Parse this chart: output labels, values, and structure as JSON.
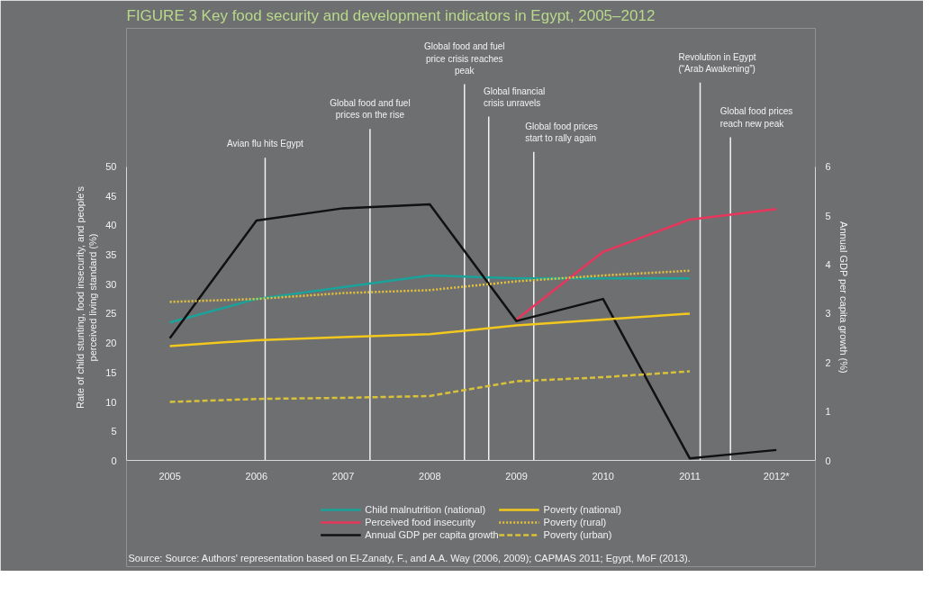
{
  "chart_data": {
    "type": "line",
    "title": "FIGURE 3   Key food security and development indicators in Egypt, 2005–2012",
    "ylabel": "Rate of child stunting, food insecurity, and people's perceived living standard (%)",
    "y2label": "Annual GDP per capita growth (%)",
    "xlim": [
      2004.5,
      2012.45
    ],
    "xticks": [
      2005,
      2006,
      2007,
      2008,
      2009,
      2010,
      2011,
      {
        "value": 2012,
        "label": "2012*"
      }
    ],
    "ylim": [
      0,
      50
    ],
    "yticks": [
      0,
      5,
      10,
      15,
      20,
      25,
      30,
      35,
      40,
      45,
      50
    ],
    "y2lim": [
      0,
      6
    ],
    "y2ticks": [
      0,
      1,
      2,
      3,
      4,
      5,
      6
    ],
    "grid": false,
    "legend": "bottom",
    "marker": "none",
    "series": [
      {
        "name": "Child malnutrition (national)",
        "color": "#1aa39a",
        "line_style": "solid",
        "x": [
          2005,
          2006,
          2007,
          2008,
          2009,
          2010,
          2011
        ],
        "values": [
          23.5,
          27.5,
          29.5,
          31.5,
          31,
          31,
          31
        ]
      },
      {
        "name": "Perceived food insecurity",
        "color": "#e8365d",
        "line_style": "solid",
        "x": [
          2009,
          2010,
          2011,
          2012
        ],
        "values": [
          24,
          35.5,
          41,
          42.8
        ]
      },
      {
        "name": "Annual GDP per capita growth",
        "color": "#111111",
        "line_style": "solid",
        "axis": "y2",
        "x": [
          2005,
          2006,
          2007,
          2008,
          2009,
          2010,
          2011,
          2012
        ],
        "values": [
          2.5,
          4.9,
          5.15,
          5.23,
          2.85,
          3.3,
          0.05,
          0.22
        ]
      },
      {
        "name": "Poverty (national)",
        "color": "#f2c81e",
        "line_style": "solid",
        "x": [
          2005,
          2006,
          2007,
          2008,
          2009,
          2010,
          2011
        ],
        "values": [
          19.5,
          20.5,
          21,
          21.5,
          23,
          24,
          25
        ]
      },
      {
        "name": "Poverty (rural)",
        "color": "#e8c43a",
        "line_style": "dotted",
        "x": [
          2005,
          2006,
          2007,
          2008,
          2009,
          2010,
          2011
        ],
        "values": [
          27,
          27.5,
          28.5,
          29,
          30.5,
          31.5,
          32.3
        ]
      },
      {
        "name": "Poverty (urban)",
        "color": "#d9c13a",
        "line_style": "dashed",
        "x": [
          2005,
          2006,
          2007,
          2008,
          2009,
          2010,
          2011
        ],
        "values": [
          10,
          10.5,
          10.7,
          11,
          13.5,
          14.2,
          15.2
        ]
      }
    ],
    "ref_lines": [
      {
        "axis": "x",
        "value": 2006.1,
        "label": "Avian flu hits Egypt",
        "color": "#f2f2f2"
      },
      {
        "axis": "x",
        "value": 2007.31,
        "label": "Global food and fuel prices on the rise",
        "color": "#f2f2f2"
      },
      {
        "axis": "x",
        "value": 2008.4,
        "label": "Global food and fuel price crisis reaches peak",
        "color": "#f2f2f2"
      },
      {
        "axis": "x",
        "value": 2008.68,
        "label": "Global financial crisis unravels",
        "color": "#f2f2f2"
      },
      {
        "axis": "x",
        "value": 2009.2,
        "label": "Global food prices start to rally again",
        "color": "#f2f2f2"
      },
      {
        "axis": "x",
        "value": 2011.12,
        "label": "Revolution in Egypt (“Arab Awakening”)",
        "color": "#f2f2f2"
      },
      {
        "axis": "x",
        "value": 2011.47,
        "label": "Global food prices reach new peak",
        "color": "#f2f2f2"
      }
    ],
    "annotations": [
      "Source: Source: Authors' representation based on El-Zanaty, F., and A.A. Way (2006, 2009); CAPMAS 2011; Egypt, MoF (2013)."
    ]
  }
}
